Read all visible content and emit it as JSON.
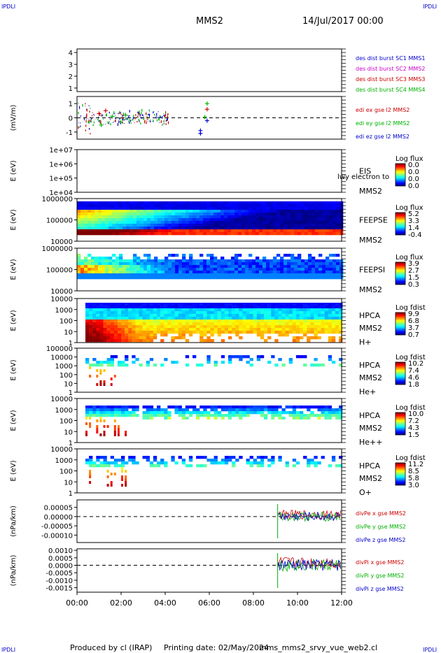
{
  "header": {
    "corner_tl": "IPDLI",
    "corner_tr": "IPDLI",
    "corner_bl": "IPDLI",
    "corner_br": "IPDLI",
    "spacecraft": "MMS2",
    "datetime": "14/Jul/2017 00:00"
  },
  "footer": {
    "produced_by": "Produced by cl (IRAP)",
    "print_date": "Printing date: 02/May/2024",
    "script": "mms_mms2_srvy_vue_web2.cl"
  },
  "colors": {
    "red": "#cc0000",
    "green": "#00b000",
    "blue": "#0000cc",
    "magenta": "#cc00cc"
  },
  "chart_data": [
    {
      "id": "p1",
      "type": "line",
      "ylabel": "",
      "yticks": [
        "1",
        "2",
        "3",
        "4"
      ],
      "ylim": [
        0.7,
        4.3
      ],
      "series": [
        {
          "name": "des dist burst SC1 MMS1",
          "color": "#0000cc"
        },
        {
          "name": "des dist burst SC2 MMS2",
          "color": "#cc00cc"
        },
        {
          "name": "des dist burst SC3 MMS3",
          "color": "#cc0000"
        },
        {
          "name": "des dist burst SC4 MMS4",
          "color": "#00b000"
        }
      ]
    },
    {
      "id": "p2",
      "type": "line",
      "ylabel": "(mV/m)",
      "yticks": [
        "-1",
        "0",
        "1"
      ],
      "ylim": [
        -1.5,
        1.5
      ],
      "series": [
        {
          "name": "edi ex gse l2 MMS2",
          "color": "#cc0000"
        },
        {
          "name": "edi ey gse l2 MMS2",
          "color": "#00b000"
        },
        {
          "name": "edi ez gse l2 MMS2",
          "color": "#0000cc"
        }
      ],
      "markers_hours": [
        [
          1.0,
          0.3,
          "#cc0000"
        ],
        [
          1.3,
          0.5,
          "#cc0000"
        ],
        [
          1.6,
          0.1,
          "#00b000"
        ],
        [
          2.2,
          0.2,
          "#00b000"
        ],
        [
          1.1,
          -0.5,
          "#00b000"
        ],
        [
          5.6,
          -0.9,
          "#0000cc"
        ],
        [
          5.6,
          -1.1,
          "#0000cc"
        ],
        [
          5.9,
          1.0,
          "#00b000"
        ],
        [
          5.9,
          0.6,
          "#cc0000"
        ],
        [
          5.8,
          0.05,
          "#00b000"
        ],
        [
          5.9,
          -0.2,
          "#0000cc"
        ]
      ]
    },
    {
      "id": "p3",
      "type": "heatmap",
      "ylabel": "E (eV)",
      "yticks": [
        "1e+04",
        "1e+05",
        "1e+06",
        "1e+07"
      ],
      "labels": [
        "EIS",
        "MMS2"
      ],
      "overlap_text": "lwy electron to",
      "cbar_title": "Log flux",
      "cbar_ticks": [
        "0.0",
        "0.0",
        "0.0",
        "0.0"
      ]
    },
    {
      "id": "p4",
      "type": "heatmap",
      "ylabel": "E (eV)",
      "yticks": [
        "10000",
        "100000",
        "1000000"
      ],
      "labels": [
        "FEEPSE",
        "MMS2"
      ],
      "cbar_title": "Log flux",
      "cbar_ticks": [
        "5.2",
        "3.3",
        "1.4",
        "-0.4"
      ]
    },
    {
      "id": "p5",
      "type": "heatmap",
      "ylabel": "E (eV)",
      "yticks": [
        "10000",
        "100000",
        "1000000"
      ],
      "labels": [
        "FEEPSI",
        "MMS2"
      ],
      "cbar_title": "Log flux",
      "cbar_ticks": [
        "3.9",
        "2.7",
        "1.5",
        "0.3"
      ]
    },
    {
      "id": "p6",
      "type": "heatmap",
      "ylabel": "E (eV)",
      "yticks": [
        "1",
        "10",
        "100",
        "1000",
        "10000"
      ],
      "labels": [
        "HPCA",
        "MMS2",
        "H+"
      ],
      "cbar_title": "Log fdist",
      "cbar_ticks": [
        "9.9",
        "6.8",
        "3.7",
        "0.7"
      ]
    },
    {
      "id": "p7",
      "type": "heatmap",
      "ylabel": "E (eV)",
      "yticks": [
        "1",
        "10",
        "100",
        "1000",
        "10000",
        "100000"
      ],
      "labels": [
        "HPCA",
        "MMS2",
        "He+"
      ],
      "cbar_title": "Log fdist",
      "cbar_ticks": [
        "10.2",
        "7.4",
        "4.6",
        "1.8"
      ]
    },
    {
      "id": "p8",
      "type": "heatmap",
      "ylabel": "E (eV)",
      "yticks": [
        "1",
        "10",
        "100",
        "1000",
        "10000"
      ],
      "labels": [
        "HPCA",
        "MMS2",
        "He++"
      ],
      "cbar_title": "Log fdist",
      "cbar_ticks": [
        "10.0",
        "7.2",
        "4.3",
        "1.5"
      ]
    },
    {
      "id": "p9",
      "type": "heatmap",
      "ylabel": "E (eV)",
      "yticks": [
        "1",
        "10",
        "100",
        "1000",
        "10000"
      ],
      "labels": [
        "HPCA",
        "MMS2",
        "O+"
      ],
      "cbar_title": "Log fdist",
      "cbar_ticks": [
        "11.2",
        "8.5",
        "5.8",
        "3.0"
      ]
    },
    {
      "id": "p10",
      "type": "line",
      "ylabel": "(nPa/km)",
      "yticks": [
        "-0.00010",
        "-0.00005",
        "0.00000",
        "0.00005"
      ],
      "ylim": [
        -0.00014,
        9e-05
      ],
      "series": [
        {
          "name": "divPe x gse MMS2",
          "color": "#cc0000"
        },
        {
          "name": "divPe y gse MMS2",
          "color": "#00b000"
        },
        {
          "name": "divPe z gse MMS2",
          "color": "#0000cc"
        }
      ],
      "data_start_hour": 9.1
    },
    {
      "id": "p11",
      "type": "line",
      "ylabel": "(nPa/km)",
      "yticks": [
        "-0.0015",
        "-0.0010",
        "-0.0005",
        "0.0000",
        "0.0005",
        "0.0010"
      ],
      "ylim": [
        -0.0018,
        0.0011
      ],
      "series": [
        {
          "name": "divPi x gse MMS2",
          "color": "#cc0000"
        },
        {
          "name": "divPi y gse MMS2",
          "color": "#00b000"
        },
        {
          "name": "divPi z gse MMS2",
          "color": "#0000cc"
        }
      ],
      "data_start_hour": 9.1
    }
  ],
  "xaxis": {
    "ticks": [
      "00:00",
      "02:00",
      "04:00",
      "06:00",
      "08:00",
      "10:00",
      "12:00"
    ],
    "xlim_hours": [
      0,
      12
    ]
  }
}
